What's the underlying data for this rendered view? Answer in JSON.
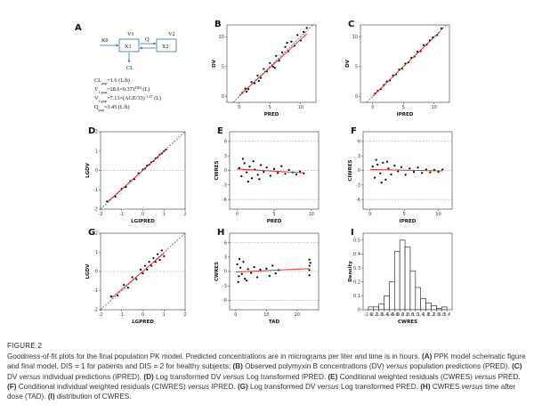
{
  "panel_a": {
    "label": "A",
    "k0": "K0",
    "v1": "V1",
    "q": "Q",
    "v2": "V2",
    "x1": "X1",
    "x2": "X2",
    "cl": "CL",
    "equations": [
      [
        {
          "t": "CL"
        },
        {
          "t": "pop",
          "sub": true
        },
        {
          "t": "=1.6 (L/h)"
        }
      ],
      [
        {
          "t": "V"
        },
        {
          "t": "1,pop",
          "sub": true
        },
        {
          "t": "=28.6×0.371"
        },
        {
          "t": "DIS",
          "sup": true
        },
        {
          "t": " (L)"
        }
      ],
      [
        {
          "t": "V"
        },
        {
          "t": "2,pop",
          "sub": true
        },
        {
          "t": "=7.13×(AGE/33)"
        },
        {
          "t": "-1.47",
          "sup": true
        },
        {
          "t": " (L)"
        }
      ],
      [
        {
          "t": "Q"
        },
        {
          "t": "pop",
          "sub": true
        },
        {
          "t": "=3.45 (L/h)"
        }
      ]
    ]
  },
  "chart_data": [
    {
      "type": "scatter",
      "panel": "B",
      "xlabel": "PRED",
      "ylabel": "DV",
      "xlim": [
        -2,
        12.5
      ],
      "ylim": [
        -1,
        12
      ],
      "xticks": [
        0,
        5,
        10
      ],
      "yticks": [
        0,
        5,
        10
      ],
      "color": "#000",
      "identity_line": true,
      "x": [
        0.5,
        1,
        1.5,
        2,
        2.5,
        3,
        3.5,
        4,
        4.5,
        5,
        5.5,
        6,
        6.5,
        7,
        7.5,
        8,
        8.5,
        9,
        9.5,
        10,
        10.5,
        11,
        1.2,
        3.2,
        5.8,
        7.8
      ],
      "values": [
        0.6,
        1.3,
        1.2,
        2.4,
        2.2,
        3.5,
        3.1,
        4.6,
        4.2,
        5.6,
        5.0,
        6.8,
        6.0,
        7.4,
        8.3,
        7.6,
        9.2,
        8.5,
        10.3,
        9.4,
        10.8,
        11.5,
        0.8,
        2.6,
        4.8,
        9.0
      ],
      "trend": {
        "color": "#e02020",
        "x": [
          0,
          11
        ],
        "values": [
          0.1,
          10.5
        ]
      }
    },
    {
      "type": "scatter",
      "panel": "C",
      "xlabel": "IPRED",
      "ylabel": "DV",
      "xlim": [
        -2,
        12.5
      ],
      "ylim": [
        -1,
        12
      ],
      "xticks": [
        0,
        5,
        10
      ],
      "yticks": [
        0,
        5,
        10
      ],
      "color": "#000",
      "identity_line": true,
      "x": [
        0.4,
        0.8,
        1.3,
        1.8,
        2.3,
        2.8,
        3.3,
        3.8,
        4.3,
        4.8,
        5.3,
        5.8,
        6.3,
        6.8,
        7.3,
        7.8,
        8.3,
        8.8,
        9.3,
        9.8,
        10.5,
        11.2
      ],
      "values": [
        0.5,
        0.9,
        1.2,
        1.9,
        2.5,
        2.7,
        3.5,
        3.7,
        4.5,
        4.7,
        5.5,
        5.7,
        6.5,
        6.7,
        7.5,
        7.6,
        8.6,
        8.7,
        9.4,
        9.9,
        10.3,
        11.4
      ],
      "trend": {
        "color": "#e02020",
        "x": [
          0,
          11
        ],
        "values": [
          0.05,
          10.9
        ]
      }
    },
    {
      "type": "scatter",
      "panel": "D",
      "xlabel": "LGIPRED",
      "ylabel": "LGDV",
      "xlim": [
        -2,
        2
      ],
      "ylim": [
        -2,
        2
      ],
      "xticks": [
        -2,
        -1,
        0,
        1,
        2
      ],
      "yticks": [
        -2,
        -1,
        0,
        1,
        2
      ],
      "color": "#000",
      "identity_line": true,
      "hlines": [
        0
      ],
      "x": [
        -1.7,
        -1.3,
        -1.0,
        -0.8,
        -0.6,
        -0.4,
        -0.2,
        0,
        0.1,
        0.2,
        0.3,
        0.4,
        0.5,
        0.6,
        0.7,
        0.8,
        0.9,
        1.0,
        1.1
      ],
      "values": [
        -1.6,
        -1.35,
        -0.95,
        -0.85,
        -0.55,
        -0.45,
        -0.15,
        0.05,
        0.1,
        0.25,
        0.3,
        0.42,
        0.48,
        0.62,
        0.68,
        0.82,
        0.88,
        1.0,
        1.08
      ],
      "trend": {
        "color": "#e02020",
        "x": [
          -1.7,
          1.1
        ],
        "values": [
          -1.65,
          1.08
        ]
      }
    },
    {
      "type": "scatter",
      "panel": "E",
      "xlabel": "PRED",
      "ylabel": "CWRES",
      "xlim": [
        -1,
        11
      ],
      "ylim": [
        -8,
        8
      ],
      "xticks": [
        0,
        5,
        10
      ],
      "yticks": [
        -6,
        -3,
        0,
        3,
        6
      ],
      "color": "#000",
      "hlines": [
        -6,
        0,
        6
      ],
      "x": [
        0.3,
        0.6,
        1,
        1.3,
        1.7,
        2,
        2.4,
        2.8,
        3.2,
        3.6,
        4,
        4.5,
        5,
        5.5,
        6,
        6.5,
        7,
        7.5,
        8,
        8.5,
        9,
        0.8,
        1.5,
        2.2,
        3
      ],
      "values": [
        0.5,
        -1.2,
        1.5,
        -0.4,
        0.8,
        -1.6,
        0.2,
        -0.9,
        1.1,
        -0.3,
        0.6,
        -1.1,
        0.3,
        -0.5,
        0.9,
        -0.7,
        0.1,
        -0.4,
        -0.8,
        -0.2,
        -0.6,
        2.4,
        -2.3,
        1.9,
        -1.8
      ],
      "trend": {
        "color": "#e02020",
        "x": [
          0,
          9
        ],
        "values": [
          0.3,
          -0.5
        ]
      }
    },
    {
      "type": "scatter",
      "panel": "F",
      "xlabel": "IPRED",
      "ylabel": "CIWRES",
      "xlim": [
        -1,
        12
      ],
      "ylim": [
        -8,
        8
      ],
      "xticks": [
        0,
        5,
        10
      ],
      "yticks": [
        -6,
        -3,
        0,
        3,
        6
      ],
      "color": "#000",
      "hlines": [
        -6,
        0,
        6
      ],
      "x": [
        0.4,
        0.7,
        1.1,
        1.5,
        1.9,
        2.3,
        2.7,
        3.1,
        3.6,
        4.1,
        4.6,
        5.2,
        5.8,
        6.4,
        7,
        7.6,
        8.2,
        8.8,
        9.4,
        10,
        10.6,
        0.9,
        1.7,
        2.5
      ],
      "values": [
        0.8,
        -1.5,
        1.2,
        -0.6,
        1.6,
        -1.9,
        0.4,
        -0.8,
        1.0,
        -0.2,
        0.7,
        -0.9,
        0.4,
        -0.3,
        0.6,
        -0.5,
        0.2,
        -0.4,
        0.1,
        -0.3,
        0.2,
        2.2,
        -2.5,
        1.8
      ],
      "trend": {
        "color": "#e02020",
        "x": [
          0,
          10.6
        ],
        "values": [
          0.2,
          -0.1
        ]
      }
    },
    {
      "type": "scatter",
      "panel": "G",
      "xlabel": "LGPRED",
      "ylabel": "LGDV",
      "xlim": [
        -2,
        2
      ],
      "ylim": [
        -2,
        2
      ],
      "xticks": [
        -2,
        -1,
        0,
        1,
        2
      ],
      "yticks": [
        -2,
        -1,
        0,
        1,
        2
      ],
      "color": "#000",
      "identity_line": true,
      "hlines": [
        0
      ],
      "x": [
        -1.5,
        -1.2,
        -0.9,
        -0.7,
        -0.5,
        -0.3,
        -0.1,
        0,
        0.1,
        0.2,
        0.3,
        0.4,
        0.5,
        0.6,
        0.7,
        0.8,
        0.9,
        1.0
      ],
      "values": [
        -1.3,
        -1.25,
        -0.7,
        -0.85,
        -0.3,
        -0.4,
        0.1,
        -0.1,
        0.3,
        0.1,
        0.5,
        0.3,
        0.7,
        0.5,
        0.9,
        0.6,
        1.1,
        0.8
      ],
      "trend": {
        "color": "#e02020",
        "x": [
          -1.5,
          1.0
        ],
        "values": [
          -1.4,
          0.95
        ]
      }
    },
    {
      "type": "scatter",
      "panel": "H",
      "xlabel": "TAD",
      "ylabel": "CWRES",
      "xlim": [
        -2,
        27
      ],
      "ylim": [
        -8,
        8
      ],
      "xticks": [
        0,
        10,
        20
      ],
      "yticks": [
        -6,
        -3,
        0,
        3,
        6
      ],
      "color": "#000",
      "hlines": [
        -6,
        0,
        6
      ],
      "x": [
        0.5,
        1,
        1.5,
        2,
        2.5,
        3,
        4,
        5,
        6,
        7,
        8,
        10,
        11,
        12,
        13,
        14,
        24,
        24,
        24,
        24,
        24.3,
        0.8,
        1.2,
        3.5
      ],
      "values": [
        1.5,
        -1,
        0.8,
        -0.5,
        2,
        -1.5,
        0.5,
        -0.3,
        0.9,
        -1.2,
        0.4,
        0.6,
        -0.9,
        1.2,
        -0.4,
        0.3,
        2.5,
        1.2,
        -0.8,
        0.3,
        1.8,
        -2.2,
        2.6,
        -1.9
      ],
      "trend": {
        "color": "#e02020",
        "x": [
          0,
          24
        ],
        "values": [
          -0.1,
          0.6
        ]
      }
    },
    {
      "type": "histogram",
      "panel": "I",
      "xlabel": "CWRES",
      "ylabel": "Density",
      "xlim": [
        -3,
        3.8
      ],
      "ylim": [
        0,
        0.55
      ],
      "xticks": [
        -2.6,
        -2.2,
        -1.8,
        -1.4,
        {
          "value": -1,
          "label": "-1.0"
        },
        -0.6,
        -0.2,
        0.2,
        0.6,
        {
          "value": 1,
          "label": "1.0"
        },
        1.4,
        1.8,
        2.2,
        2.6,
        {
          "value": 3,
          "label": "3.0"
        },
        3.4
      ],
      "yticks": [
        0,
        0.1,
        0.2,
        0.3,
        0.4,
        0.5
      ],
      "color": "#fff",
      "bins": [
        -2.6,
        -2.2,
        -1.8,
        -1.4,
        -1,
        -0.6,
        -0.2,
        0.2,
        0.6,
        1,
        1.4,
        1.8,
        2.2,
        2.6,
        3,
        3.4
      ],
      "values": [
        0.02,
        0.02,
        0.04,
        0.1,
        0.2,
        0.42,
        0.5,
        0.45,
        0.28,
        0.16,
        0.08,
        0.05,
        0.03,
        0.01,
        0.02
      ]
    }
  ],
  "caption": {
    "label": "FIGURE 2",
    "parts": [
      {
        "t": "Goodness-of-fit plots for the final population PK model. Predicted concentrations are in micrograms per liter and time is in hours. "
      },
      {
        "t": "(A)",
        "style": "b"
      },
      {
        "t": " PPK model schematic figure and final model, DIS = 1 for patients and DIS = 2 for healthy subjects; "
      },
      {
        "t": "(B)",
        "style": "b"
      },
      {
        "t": " Observed polymyxin B concentrations (DV) "
      },
      {
        "t": "versus",
        "style": "i"
      },
      {
        "t": " population predictions (PRED). "
      },
      {
        "t": "(C)",
        "style": "b"
      },
      {
        "t": " DV "
      },
      {
        "t": "versus",
        "style": "i"
      },
      {
        "t": " individual predictions (IPRED). "
      },
      {
        "t": "(D)",
        "style": "b"
      },
      {
        "t": " Log transformed DV "
      },
      {
        "t": "versus",
        "style": "i"
      },
      {
        "t": " Log transformed IPRED. "
      },
      {
        "t": "(E)",
        "style": "b"
      },
      {
        "t": " Conditional weighted residuals (CWRES) "
      },
      {
        "t": "versus",
        "style": "i"
      },
      {
        "t": " PRED. "
      },
      {
        "t": "(F)",
        "style": "b"
      },
      {
        "t": " Conditional individual weighted residuals (CIWRES) "
      },
      {
        "t": "versus",
        "style": "i"
      },
      {
        "t": " IPRED. "
      },
      {
        "t": "(G)",
        "style": "b"
      },
      {
        "t": " Log transformed DV "
      },
      {
        "t": "versus",
        "style": "i"
      },
      {
        "t": " Log transformed PRED. "
      },
      {
        "t": "(H)",
        "style": "b"
      },
      {
        "t": " CWRES "
      },
      {
        "t": "versus",
        "style": "i"
      },
      {
        "t": " time after dose (TAD). "
      },
      {
        "t": "(I)",
        "style": "b"
      },
      {
        "t": " distribution of CWRES."
      }
    ]
  }
}
